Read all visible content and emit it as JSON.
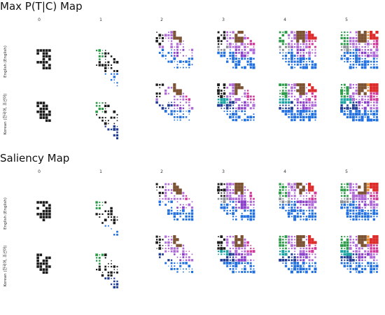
{
  "chart_data": [
    {
      "type": "heatmap",
      "title": "Max P(T|C) Map",
      "column_labels": [
        "0",
        "1",
        "2",
        "3",
        "4",
        "5"
      ],
      "row_labels": [
        "English (English)",
        "Korean (한국어, 조선어)"
      ]
    },
    {
      "type": "heatmap",
      "title": "Saliency Map",
      "column_labels": [
        "0",
        "1",
        "2",
        "3",
        "4",
        "5"
      ],
      "row_labels": [
        "English (English)",
        "Korean (한국어, 조선어)"
      ]
    }
  ],
  "palette": {
    "dark": "#1a1a1a",
    "navy": "#1f3a93",
    "blue": "#1f6fe0",
    "purple": "#8a3fc8",
    "violet": "#b06ad8",
    "magenta": "#d0389b",
    "brown": "#7b5232",
    "red": "#dd2a2a",
    "green": "#2a9a47",
    "teal": "#17a2a0",
    "grey": "#8a8f96",
    "orange": "#e08a2c"
  }
}
